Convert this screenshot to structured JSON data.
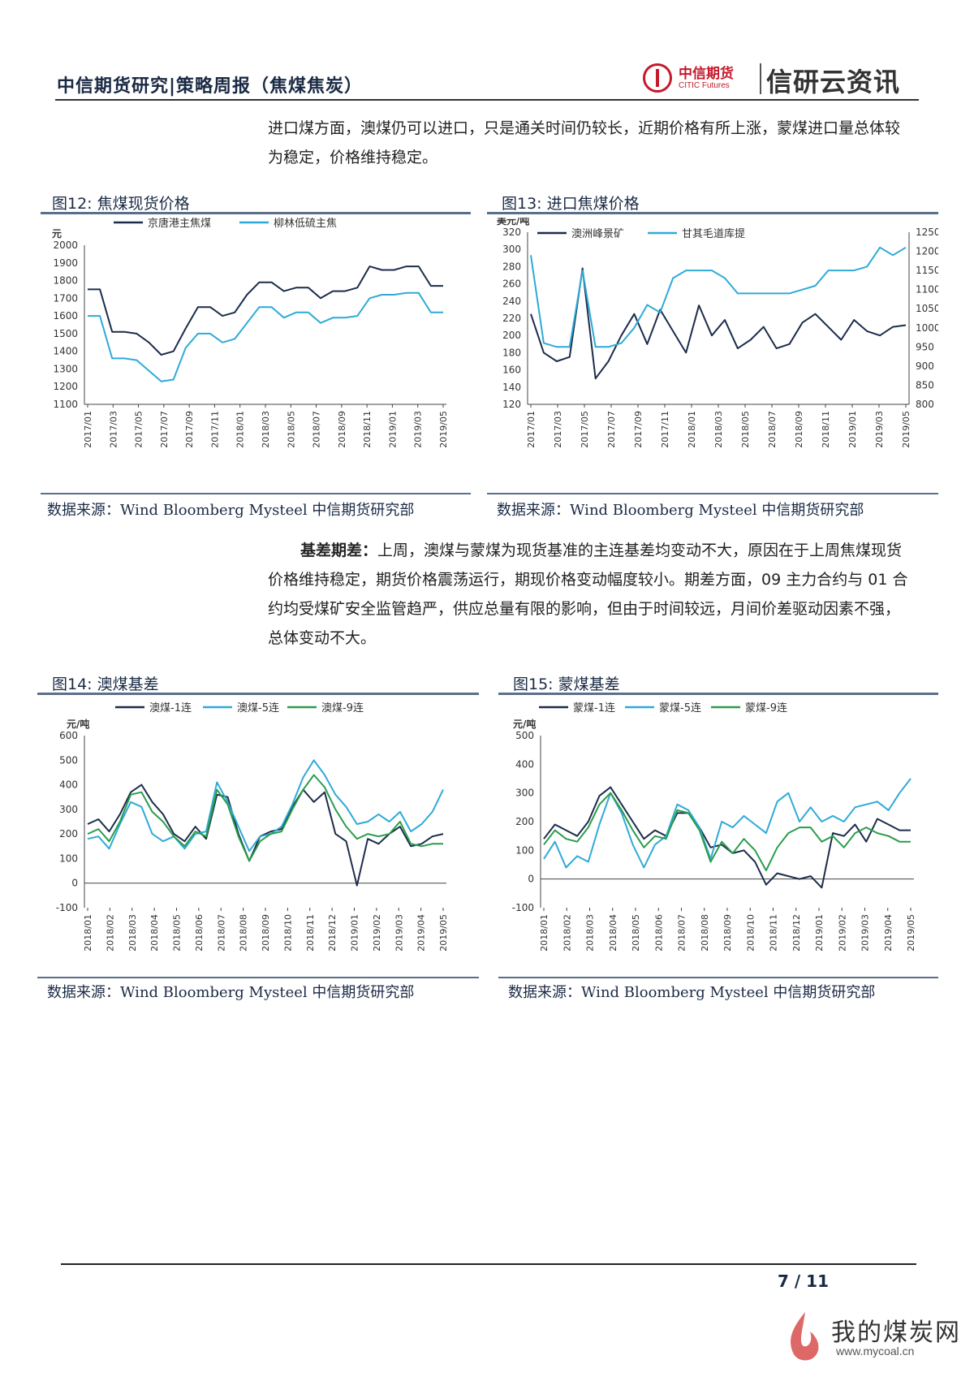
{
  "header": {
    "title": "中信期货研究|策略周报（焦煤焦炭）",
    "logo_cn": "中信期货",
    "logo_en": "CITIC Futures",
    "brand": "信研云资讯"
  },
  "paragraph1": "进口煤方面，澳煤仍可以进口，只是通关时间仍较长，近期价格有所上涨，蒙煤进口量总体较为稳定，价格维持稳定。",
  "paragraph2": {
    "lead": "基差期差：",
    "text": "上周，澳煤与蒙煤为现货基准的主连基差均变动不大，原因在于上周焦煤现货价格维持稳定，期货价格震荡运行，期现价格变动幅度较小。期差方面，09 主力合约与 01 合约均受煤矿安全监管趋严，供应总量有限的影响，但由于时间较远，月间价差驱动因素不强，总体变动不大。"
  },
  "figures": {
    "fig12": {
      "title": "图12: 焦煤现货价格",
      "source": "数据来源：Wind Bloomberg Mysteel 中信期货研究部"
    },
    "fig13": {
      "title": "图13: 进口焦煤价格",
      "source": "数据来源：Wind Bloomberg Mysteel 中信期货研究部"
    },
    "fig14": {
      "title": "图14: 澳煤基差",
      "source": "数据来源：Wind Bloomberg Mysteel 中信期货研究部"
    },
    "fig15": {
      "title": "图15: 蒙煤基差",
      "source": "数据来源：Wind Bloomberg Mysteel 中信期货研究部"
    }
  },
  "chart_data": [
    {
      "type": "line",
      "ylabel": "元",
      "ylim": [
        1100,
        2000
      ],
      "yticks": [
        1100,
        1200,
        1300,
        1400,
        1500,
        1600,
        1700,
        1800,
        1900,
        2000
      ],
      "xticks": [
        "2017/01",
        "2017/03",
        "2017/05",
        "2017/07",
        "2017/09",
        "2017/11",
        "2018/01",
        "2018/03",
        "2018/05",
        "2018/07",
        "2018/09",
        "2018/11",
        "2019/01",
        "2019/03",
        "2019/05"
      ],
      "x": [
        "2017/01",
        "2017/02",
        "2017/03",
        "2017/04",
        "2017/05",
        "2017/06",
        "2017/07",
        "2017/08",
        "2017/09",
        "2017/10",
        "2017/11",
        "2017/12",
        "2018/01",
        "2018/02",
        "2018/03",
        "2018/04",
        "2018/05",
        "2018/06",
        "2018/07",
        "2018/08",
        "2018/09",
        "2018/10",
        "2018/11",
        "2018/12",
        "2019/01",
        "2019/02",
        "2019/03",
        "2019/04",
        "2019/05",
        "2019/06"
      ],
      "series": [
        {
          "name": "京唐港主焦煤",
          "color": "#1c2c4c",
          "values": [
            1750,
            1750,
            1510,
            1510,
            1500,
            1450,
            1380,
            1400,
            1530,
            1650,
            1650,
            1600,
            1620,
            1720,
            1790,
            1790,
            1740,
            1760,
            1760,
            1700,
            1740,
            1740,
            1760,
            1880,
            1860,
            1860,
            1880,
            1880,
            1770,
            1770
          ]
        },
        {
          "name": "柳林低硫主焦",
          "color": "#2eaad8",
          "values": [
            1600,
            1600,
            1360,
            1360,
            1350,
            1290,
            1230,
            1240,
            1420,
            1500,
            1500,
            1450,
            1470,
            1560,
            1650,
            1650,
            1590,
            1620,
            1620,
            1560,
            1590,
            1590,
            1600,
            1700,
            1720,
            1720,
            1730,
            1730,
            1620,
            1620
          ]
        }
      ]
    },
    {
      "type": "line",
      "ylabel": "美元/吨",
      "ylim": [
        120,
        320
      ],
      "yticks": [
        120,
        140,
        160,
        180,
        200,
        220,
        240,
        260,
        280,
        300,
        320
      ],
      "y2lim": [
        800,
        1250
      ],
      "y2ticks": [
        800,
        850,
        900,
        950,
        1000,
        1050,
        1100,
        1150,
        1200,
        1250
      ],
      "xticks": [
        "2017/01",
        "2017/03",
        "2017/05",
        "2017/07",
        "2017/09",
        "2017/11",
        "2018/01",
        "2018/03",
        "2018/05",
        "2018/07",
        "2018/09",
        "2018/11",
        "2019/01",
        "2019/03",
        "2019/05"
      ],
      "x": [
        "2017/01",
        "2017/02",
        "2017/03",
        "2017/04",
        "2017/05",
        "2017/06",
        "2017/07",
        "2017/08",
        "2017/09",
        "2017/10",
        "2017/11",
        "2017/12",
        "2018/01",
        "2018/02",
        "2018/03",
        "2018/04",
        "2018/05",
        "2018/06",
        "2018/07",
        "2018/08",
        "2018/09",
        "2018/10",
        "2018/11",
        "2018/12",
        "2019/01",
        "2019/02",
        "2019/03",
        "2019/04",
        "2019/05",
        "2019/06"
      ],
      "series": [
        {
          "name": "澳洲峰景矿",
          "color": "#1c2c4c",
          "axis": "left",
          "values": [
            225,
            180,
            170,
            175,
            278,
            150,
            170,
            200,
            225,
            190,
            230,
            205,
            180,
            235,
            200,
            218,
            185,
            195,
            210,
            185,
            190,
            215,
            225,
            210,
            195,
            218,
            205,
            200,
            210,
            212
          ]
        },
        {
          "name": "甘其毛道库提",
          "color": "#2eaad8",
          "axis": "right",
          "values": [
            1190,
            960,
            950,
            950,
            1150,
            950,
            950,
            960,
            1000,
            1060,
            1040,
            1130,
            1150,
            1150,
            1150,
            1130,
            1090,
            1090,
            1090,
            1090,
            1090,
            1100,
            1110,
            1150,
            1150,
            1150,
            1160,
            1210,
            1190,
            1210
          ]
        }
      ]
    },
    {
      "type": "line",
      "ylabel": "元/吨",
      "ylim": [
        -100,
        600
      ],
      "yticks": [
        -100,
        0,
        100,
        200,
        300,
        400,
        500,
        600
      ],
      "xticks": [
        "2018/01",
        "2018/02",
        "2018/03",
        "2018/04",
        "2018/05",
        "2018/06",
        "2018/07",
        "2018/08",
        "2018/09",
        "2018/10",
        "2018/11",
        "2018/12",
        "2019/01",
        "2019/02",
        "2019/03",
        "2019/04",
        "2019/05"
      ],
      "x": [
        "2018/01",
        "2018/01b",
        "2018/02",
        "2018/02b",
        "2018/03",
        "2018/03b",
        "2018/04",
        "2018/04b",
        "2018/05",
        "2018/05b",
        "2018/06",
        "2018/06b",
        "2018/07",
        "2018/07b",
        "2018/08",
        "2018/08b",
        "2018/09",
        "2018/09b",
        "2018/10",
        "2018/10b",
        "2018/11",
        "2018/11b",
        "2018/12",
        "2018/12b",
        "2019/01",
        "2019/01b",
        "2019/02",
        "2019/02b",
        "2019/03",
        "2019/03b",
        "2019/04",
        "2019/04b",
        "2019/05",
        "2019/05b"
      ],
      "series": [
        {
          "name": "澳煤-1连",
          "color": "#1c2c4c",
          "values": [
            240,
            260,
            210,
            280,
            370,
            400,
            330,
            280,
            200,
            170,
            230,
            180,
            360,
            350,
            200,
            90,
            190,
            210,
            220,
            310,
            380,
            330,
            370,
            200,
            170,
            -10,
            180,
            160,
            200,
            230,
            150,
            160,
            190,
            200
          ]
        },
        {
          "name": "澳煤-5连",
          "color": "#2eaad8",
          "values": [
            180,
            190,
            140,
            240,
            330,
            310,
            200,
            170,
            190,
            140,
            200,
            210,
            410,
            330,
            230,
            130,
            190,
            200,
            230,
            320,
            430,
            500,
            440,
            360,
            310,
            240,
            250,
            280,
            250,
            290,
            210,
            240,
            290,
            380
          ]
        },
        {
          "name": "澳煤-9连",
          "color": "#2a9d4a",
          "values": [
            200,
            220,
            170,
            250,
            360,
            370,
            290,
            250,
            190,
            150,
            210,
            190,
            380,
            320,
            190,
            90,
            170,
            200,
            210,
            300,
            380,
            440,
            390,
            300,
            230,
            180,
            200,
            190,
            200,
            250,
            160,
            150,
            160,
            160
          ]
        }
      ]
    },
    {
      "type": "line",
      "ylabel": "元/吨",
      "ylim": [
        -100,
        500
      ],
      "yticks": [
        -100,
        0,
        100,
        200,
        300,
        400,
        500
      ],
      "xticks": [
        "2018/01",
        "2018/02",
        "2018/03",
        "2018/04",
        "2018/05",
        "2018/06",
        "2018/07",
        "2018/08",
        "2018/09",
        "2018/10",
        "2018/11",
        "2018/12",
        "2019/01",
        "2019/02",
        "2019/03",
        "2019/04",
        "2019/05"
      ],
      "x": [
        "2018/01",
        "2018/01b",
        "2018/02",
        "2018/02b",
        "2018/03",
        "2018/03b",
        "2018/04",
        "2018/04b",
        "2018/05",
        "2018/05b",
        "2018/06",
        "2018/06b",
        "2018/07",
        "2018/07b",
        "2018/08",
        "2018/08b",
        "2018/09",
        "2018/09b",
        "2018/10",
        "2018/10b",
        "2018/11",
        "2018/11b",
        "2018/12",
        "2018/12b",
        "2019/01",
        "2019/01b",
        "2019/02",
        "2019/02b",
        "2019/03",
        "2019/03b",
        "2019/04",
        "2019/04b",
        "2019/05",
        "2019/05b"
      ],
      "series": [
        {
          "name": "蒙煤-1连",
          "color": "#1c2c4c",
          "values": [
            140,
            190,
            170,
            150,
            200,
            290,
            320,
            260,
            200,
            140,
            170,
            150,
            230,
            230,
            180,
            110,
            120,
            90,
            100,
            60,
            -20,
            20,
            10,
            0,
            10,
            -30,
            160,
            150,
            190,
            130,
            210,
            190,
            170,
            170
          ]
        },
        {
          "name": "蒙煤-5连",
          "color": "#2eaad8",
          "values": [
            70,
            130,
            40,
            80,
            60,
            190,
            300,
            230,
            120,
            40,
            120,
            150,
            260,
            240,
            180,
            70,
            200,
            180,
            220,
            190,
            160,
            270,
            300,
            200,
            250,
            200,
            220,
            200,
            250,
            260,
            270,
            240,
            300,
            350
          ]
        },
        {
          "name": "蒙煤-9连",
          "color": "#2a9d4a",
          "values": [
            120,
            170,
            140,
            130,
            180,
            260,
            300,
            240,
            170,
            110,
            150,
            140,
            240,
            230,
            170,
            60,
            130,
            90,
            140,
            100,
            30,
            110,
            160,
            180,
            180,
            130,
            150,
            110,
            160,
            180,
            160,
            150,
            130,
            130
          ]
        }
      ]
    }
  ],
  "footer": {
    "page": "7 / 11",
    "watermark_cn": "我的煤炭网",
    "watermark_url": "www.mycoal.cn"
  }
}
